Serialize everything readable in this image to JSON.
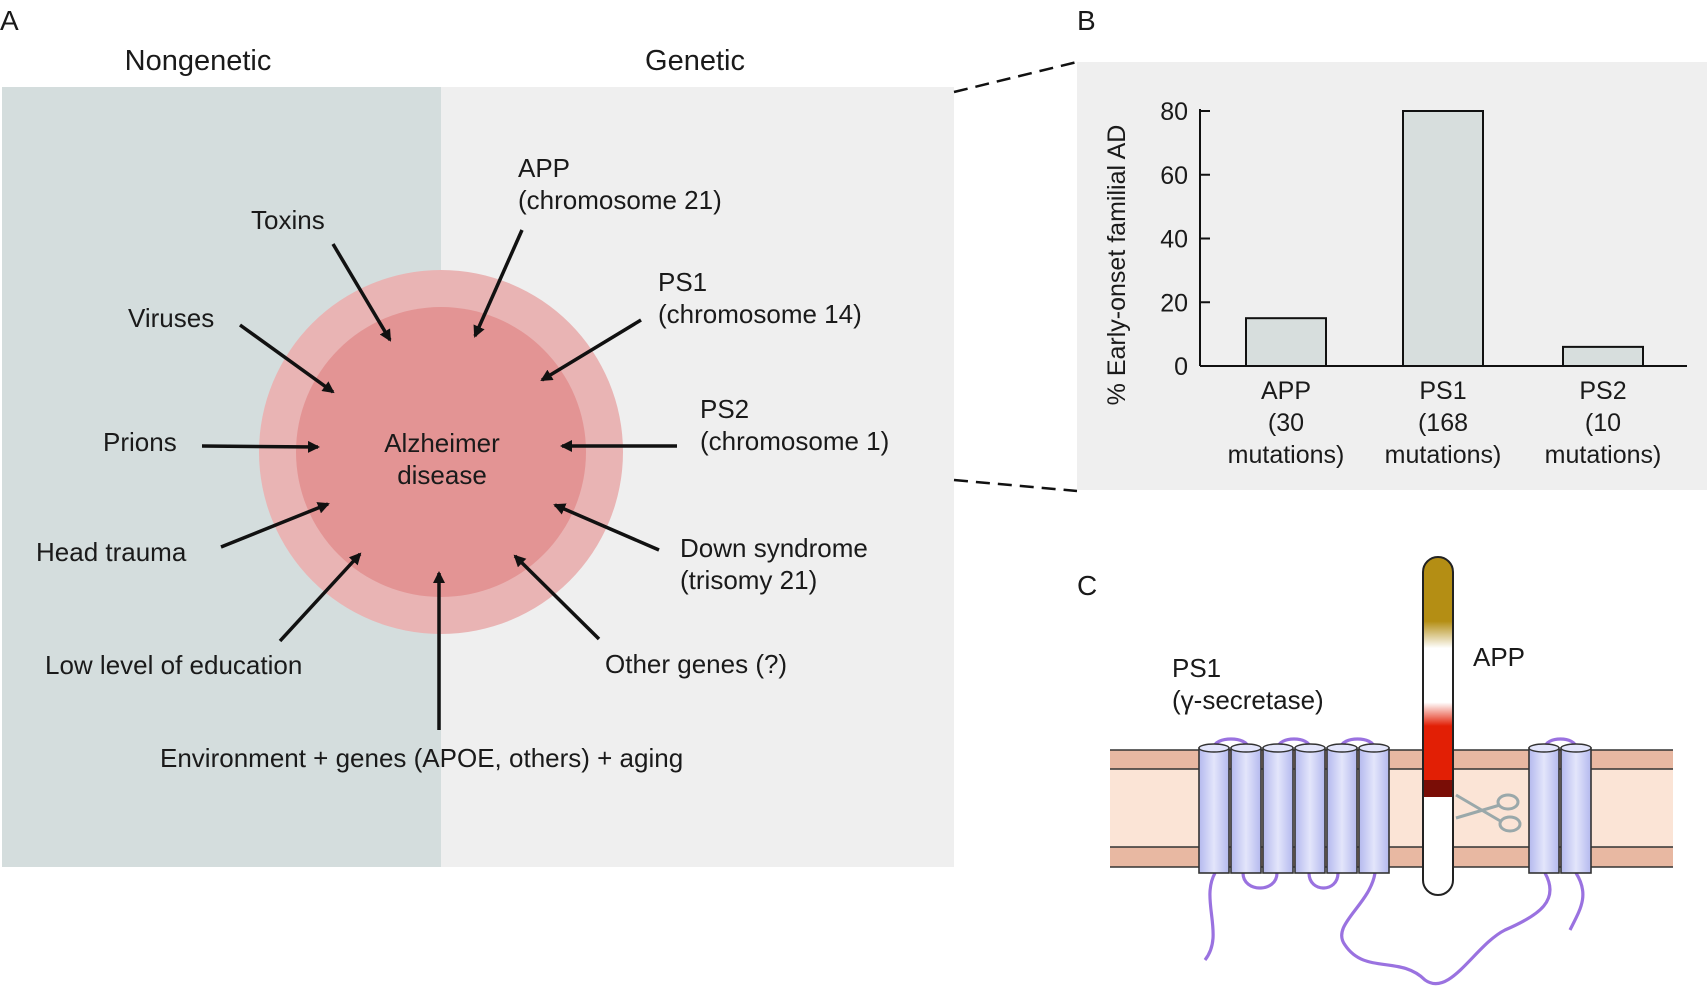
{
  "panels": {
    "a": "A",
    "b": "B",
    "c": "C"
  },
  "panel_a": {
    "left_heading": "Nongenetic",
    "right_heading": "Genetic",
    "center_line1": "Alzheimer",
    "center_line2": "disease",
    "factors": {
      "toxins": "Toxins",
      "viruses": "Viruses",
      "prions": "Prions",
      "head_trauma": "Head trauma",
      "education": "Low level of education",
      "app_l1": "APP",
      "app_l2": "(chromosome 21)",
      "ps1_l1": "PS1",
      "ps1_l2": "(chromosome 14)",
      "ps2_l1": "PS2",
      "ps2_l2": "(chromosome 1)",
      "down_l1": "Down syndrome",
      "down_l2": "(trisomy 21)",
      "other_genes": "Other genes (?)",
      "environment": "Environment + genes (APOE, others) + aging"
    },
    "colors": {
      "nongenetic_bg": "#d4dddd",
      "genetic_bg": "#efefef",
      "outer_ring": "#e9b4b4",
      "inner_circle": "#e39494"
    }
  },
  "chart_data": {
    "type": "bar",
    "ylabel": "% Early-onset familial AD",
    "ylim": [
      0,
      80
    ],
    "yticks": [
      0,
      20,
      40,
      60,
      80
    ],
    "categories": [
      "APP",
      "PS1",
      "PS2"
    ],
    "category_sublabels": [
      [
        "(30",
        "mutations)"
      ],
      [
        "(168",
        "mutations)"
      ],
      [
        "(10",
        "mutations)"
      ]
    ],
    "values": [
      15,
      80,
      6
    ],
    "bar_color": "#d7dedd",
    "grid": false
  },
  "panel_c": {
    "ps1_label": "PS1",
    "ps1_sub": "(γ-secretase)",
    "app_label": "APP",
    "colors": {
      "membrane_edge": "#e8b8a2",
      "membrane_core": "#fbe4d6",
      "helix": "#c9cdf4",
      "loop": "#9a72e0",
      "app_gold": "#b48e14",
      "app_red": "#e21f05",
      "app_dark": "#7a0d06",
      "scissors": "#9aa8aa"
    }
  }
}
